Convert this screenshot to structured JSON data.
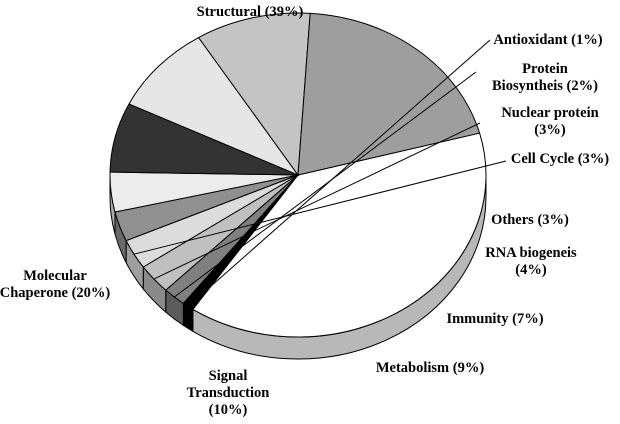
{
  "chart_data": {
    "type": "pie",
    "three_d": true,
    "title": "",
    "slices": [
      {
        "label": "Structural (39%)",
        "value": 39,
        "color": "#ffffff"
      },
      {
        "label": "Antioxidant (1%)",
        "value": 1,
        "color": "#000000"
      },
      {
        "label": "Protein Biosyntheis (2%)",
        "value": 2,
        "color": "#808080"
      },
      {
        "label": "Nuclear protein (3%)",
        "value": 3,
        "color": "#c0c0c0"
      },
      {
        "label": "Cell Cycle (3%)",
        "value": 3,
        "color": "#dcdcdc"
      },
      {
        "label": "Others (3%)",
        "value": 3,
        "color": "#909090"
      },
      {
        "label": "RNA biogeneis (4%)",
        "value": 4,
        "color": "#ececec"
      },
      {
        "label": "Immunity (7%)",
        "value": 7,
        "color": "#333333"
      },
      {
        "label": "Metabolism (9%)",
        "value": 9,
        "color": "#e6e6e6"
      },
      {
        "label": "Signal Transduction (10%)",
        "value": 10,
        "color": "#c4c4c4"
      },
      {
        "label": "Molecular Chaperone (20%)",
        "value": 20,
        "color": "#9e9e9e"
      }
    ]
  }
}
